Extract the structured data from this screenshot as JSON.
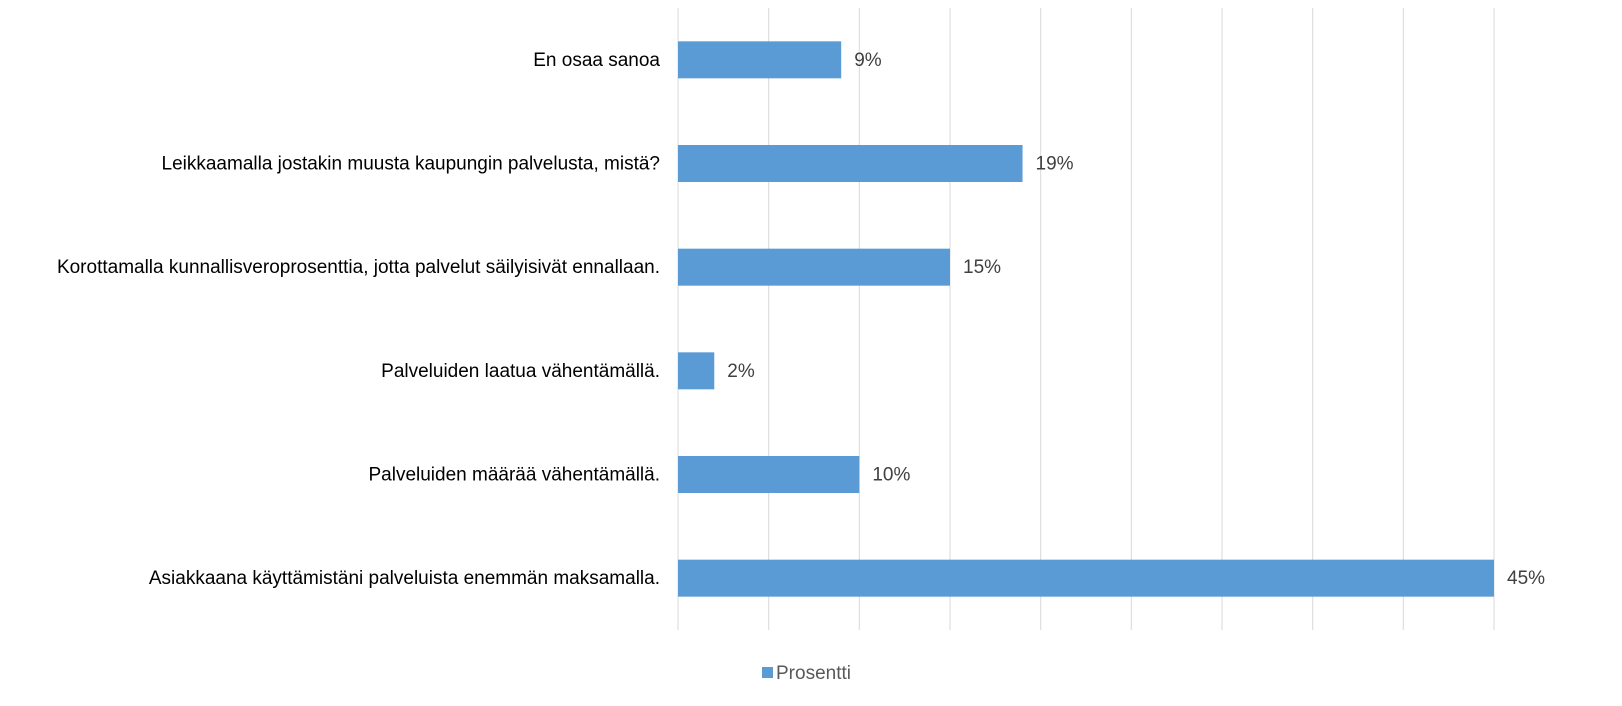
{
  "chart_data": {
    "type": "hbar",
    "categories": [
      "En osaa sanoa",
      "Leikkaamalla jostakin muusta kaupungin palvelusta, mistä?",
      "Korottamalla kunnallisveroprosenttia, jotta palvelut säilyisivät ennallaan.",
      "Palveluiden laatua vähentämällä.",
      "Palveluiden määrää vähentämällä.",
      "Asiakkaana käyttämistäni palveluista enemmän maksamalla."
    ],
    "series": [
      {
        "name": "Prosentti",
        "color": "#5b9bd5",
        "values": [
          9,
          19,
          15,
          2,
          10,
          45
        ],
        "value_labels": [
          "9%",
          "19%",
          "15%",
          "2%",
          "10%",
          "45%"
        ]
      }
    ],
    "xlim": [
      0,
      45
    ],
    "xticks": [
      0,
      5,
      10,
      15,
      20,
      25,
      30,
      35,
      40,
      45
    ],
    "grid": true,
    "legend": "bottom"
  }
}
